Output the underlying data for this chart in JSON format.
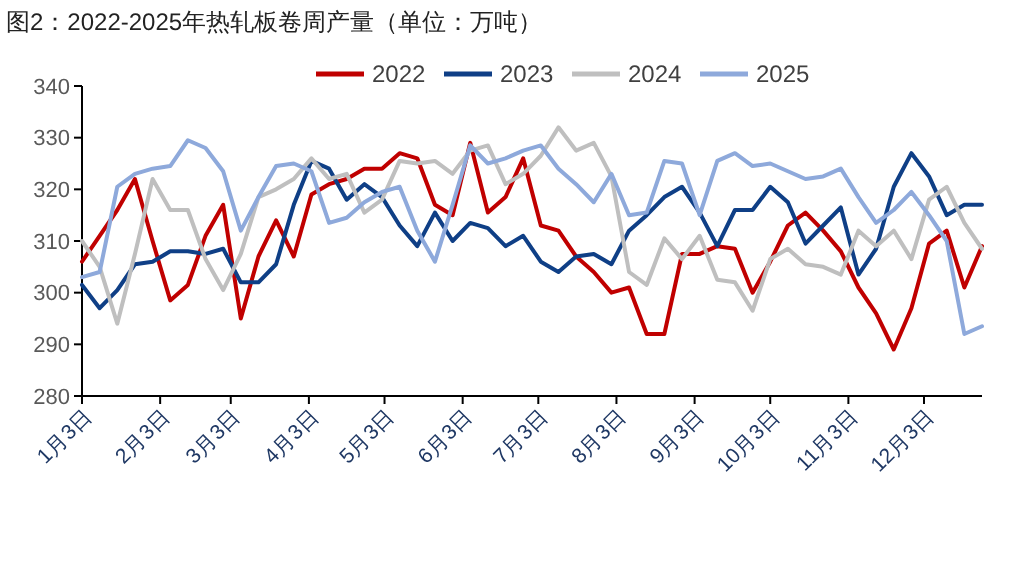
{
  "chart_data": {
    "type": "line",
    "title": "图2：2022-2025年热轧板卷周产量（单位：万吨）",
    "x": [
      "--01-03",
      "--01-10",
      "--01-17",
      "--01-24",
      "--01-31",
      "--02-07",
      "--02-14",
      "--02-21",
      "--02-28",
      "--03-07",
      "--03-14",
      "--03-21",
      "--03-28",
      "--04-04",
      "--04-11",
      "--04-18",
      "--04-25",
      "--05-02",
      "--05-09",
      "--05-16",
      "--05-23",
      "--05-30",
      "--06-06",
      "--06-13",
      "--06-20",
      "--06-27",
      "--07-04",
      "--07-11",
      "--07-18",
      "--07-25",
      "--08-01",
      "--08-08",
      "--08-15",
      "--08-22",
      "--08-29",
      "--09-05",
      "--09-12",
      "--09-19",
      "--09-26",
      "--10-03",
      "--10-10",
      "--10-17",
      "--10-24",
      "--10-31",
      "--11-07",
      "--11-14",
      "--11-21",
      "--11-28",
      "--12-05",
      "--12-12",
      "--12-19",
      "--12-26"
    ],
    "series": [
      {
        "name": "2022",
        "color": "#c00000",
        "values": [
          306,
          311,
          316,
          322,
          310,
          298.5,
          301.5,
          311,
          317,
          295,
          307,
          314,
          307,
          319,
          321,
          322,
          324,
          324,
          327,
          326,
          317,
          315,
          329,
          315.5,
          318.5,
          326,
          313,
          312,
          307,
          304,
          300,
          301,
          292,
          292,
          307.5,
          307.5,
          309,
          308.5,
          300,
          306,
          313,
          315.5,
          312,
          308,
          301,
          296,
          289,
          297,
          309.5,
          312,
          301,
          309
        ]
      },
      {
        "name": "2023",
        "color": "#0f3f86",
        "values": [
          301.5,
          297,
          300.5,
          305.5,
          306,
          308,
          308,
          307.5,
          308.5,
          302,
          302,
          305.5,
          317,
          325.5,
          324,
          318,
          321,
          318.5,
          313,
          309,
          315.5,
          310,
          313.5,
          312.5,
          309,
          311,
          306,
          304,
          307,
          307.5,
          305.5,
          312,
          315,
          318.5,
          320.5,
          315.5,
          309,
          316,
          316,
          320.5,
          317.5,
          309.5,
          313,
          316.5,
          303.5,
          308.5,
          320.5,
          327,
          322.5,
          315,
          317,
          317
        ]
      },
      {
        "name": "2024",
        "color": "#bfbfbf",
        "values": [
          310,
          305,
          294,
          307.5,
          322,
          316,
          316,
          306.5,
          300.5,
          307.5,
          318.5,
          320,
          322,
          326,
          322,
          323,
          315.5,
          318,
          325.5,
          325,
          325.5,
          323,
          327.5,
          328.5,
          321,
          323,
          326.5,
          332,
          327.5,
          329,
          322.5,
          304,
          301.5,
          310.5,
          306.5,
          311,
          302.5,
          302,
          296.5,
          306.5,
          308.5,
          305.5,
          305,
          303.5,
          312,
          309,
          312,
          306.5,
          318,
          320.5,
          313.5,
          308.5
        ]
      },
      {
        "name": "2025",
        "color": "#8ea9db",
        "values": [
          303,
          304,
          320.5,
          323,
          324,
          324.5,
          329.5,
          328,
          323.5,
          312,
          318.5,
          324.5,
          325,
          323.5,
          313.5,
          314.5,
          317.5,
          319.5,
          320.5,
          312,
          306,
          317,
          328.5,
          325,
          326,
          327.5,
          328.5,
          324,
          321,
          317.5,
          323,
          315,
          315.5,
          325.5,
          325,
          315,
          325.5,
          327,
          324.5,
          325,
          323.5,
          322,
          322.5,
          324,
          318.5,
          313.5,
          316,
          319.5,
          315,
          310,
          292,
          293.5
        ]
      }
    ],
    "xlim": [
      "--01-03",
      "--12-26"
    ],
    "xticks": [
      {
        "value": "--01-03",
        "label": "1月3日"
      },
      {
        "value": "--02-03",
        "label": "2月3日"
      },
      {
        "value": "--03-03",
        "label": "3月3日"
      },
      {
        "value": "--04-03",
        "label": "4月3日"
      },
      {
        "value": "--05-03",
        "label": "5月3日"
      },
      {
        "value": "--06-03",
        "label": "6月3日"
      },
      {
        "value": "--07-03",
        "label": "7月3日"
      },
      {
        "value": "--08-03",
        "label": "8月3日"
      },
      {
        "value": "--09-03",
        "label": "9月3日"
      },
      {
        "value": "--10-03",
        "label": "10月3日"
      },
      {
        "value": "--11-03",
        "label": "11月3日"
      },
      {
        "value": "--12-03",
        "label": "12月3日"
      }
    ],
    "ylim": [
      280,
      340
    ],
    "yticks": [
      280,
      290,
      300,
      310,
      320,
      330,
      340
    ],
    "grid": false,
    "legend": "top",
    "marker": "none",
    "line_style": "solid"
  }
}
